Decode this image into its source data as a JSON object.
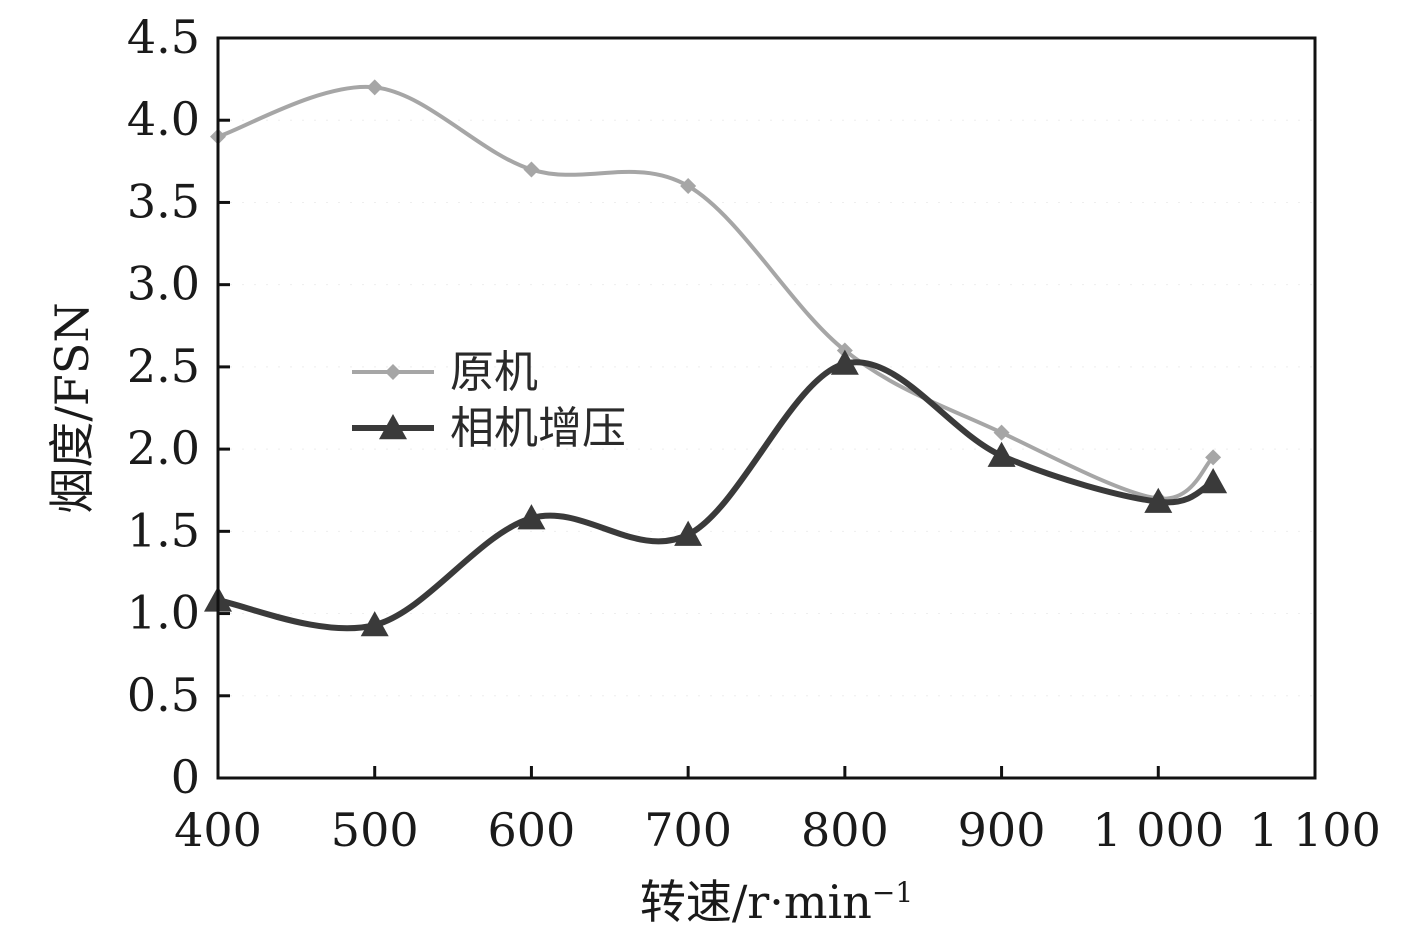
{
  "chart_data": {
    "type": "line",
    "xlabel": "转速/r·min",
    "xlabel_superscript": "−1",
    "ylabel": "烟度/FSN",
    "xlim": [
      400,
      1100
    ],
    "ylim": [
      0,
      4.5
    ],
    "x_ticks": [
      400,
      500,
      600,
      700,
      800,
      900,
      1000,
      1100
    ],
    "x_tick_labels": [
      "400",
      "500",
      "600",
      "700",
      "800",
      "900",
      "1 000",
      "1 100"
    ],
    "y_ticks": [
      0,
      0.5,
      1.0,
      1.5,
      2.0,
      2.5,
      3.0,
      3.5,
      4.0,
      4.5
    ],
    "y_tick_labels": [
      "0",
      "0.5",
      "1.0",
      "1.5",
      "2.0",
      "2.5",
      "3.0",
      "3.5",
      "4.0",
      "4.5"
    ],
    "legend_position": "center-left",
    "series": [
      {
        "name": "原机",
        "color": "#a6a6a6",
        "marker": "diamond",
        "x": [
          400,
          500,
          600,
          700,
          800,
          900,
          1000,
          1035
        ],
        "y": [
          3.9,
          4.2,
          3.7,
          3.6,
          2.6,
          2.1,
          1.7,
          1.95
        ]
      },
      {
        "name": "相机增压",
        "color": "#3a3a3a",
        "marker": "triangle",
        "x": [
          400,
          500,
          600,
          700,
          800,
          900,
          1000,
          1035
        ],
        "y": [
          1.08,
          0.93,
          1.58,
          1.48,
          2.52,
          1.96,
          1.68,
          1.8
        ]
      }
    ]
  }
}
